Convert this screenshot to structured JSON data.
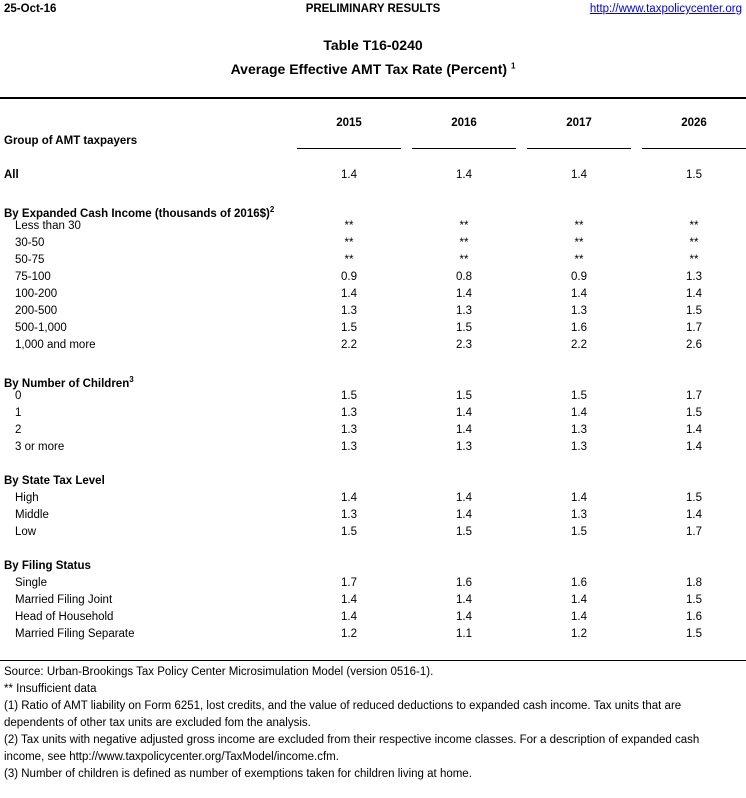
{
  "header": {
    "date": "25-Oct-16",
    "status": "PRELIMINARY RESULTS",
    "link": "http://www.taxpolicycenter.org"
  },
  "title": "Table T16-0240",
  "subtitle": "Average Effective AMT Tax Rate (Percent)",
  "subtitle_note": "1",
  "columns": [
    "2015",
    "2016",
    "2017",
    "2026"
  ],
  "group_label": "Group of AMT taxpayers",
  "all": {
    "label": "All",
    "values": [
      "1.4",
      "1.4",
      "1.4",
      "1.5"
    ]
  },
  "sections": [
    {
      "title": "By Expanded Cash Income (thousands of 2016$)",
      "note": "2",
      "rows": [
        {
          "label": "Less than 30",
          "values": [
            "**",
            "**",
            "**",
            "**"
          ]
        },
        {
          "label": "30-50",
          "values": [
            "**",
            "**",
            "**",
            "**"
          ]
        },
        {
          "label": "50-75",
          "values": [
            "**",
            "**",
            "**",
            "**"
          ]
        },
        {
          "label": "75-100",
          "values": [
            "0.9",
            "0.8",
            "0.9",
            "1.3"
          ]
        },
        {
          "label": "100-200",
          "values": [
            "1.4",
            "1.4",
            "1.4",
            "1.4"
          ]
        },
        {
          "label": "200-500",
          "values": [
            "1.3",
            "1.3",
            "1.3",
            "1.5"
          ]
        },
        {
          "label": "500-1,000",
          "values": [
            "1.5",
            "1.5",
            "1.6",
            "1.7"
          ]
        },
        {
          "label": "1,000 and more",
          "values": [
            "2.2",
            "2.3",
            "2.2",
            "2.6"
          ]
        }
      ]
    },
    {
      "title": "By Number of Children",
      "note": "3",
      "rows": [
        {
          "label": "0",
          "values": [
            "1.5",
            "1.5",
            "1.5",
            "1.7"
          ]
        },
        {
          "label": "1",
          "values": [
            "1.3",
            "1.4",
            "1.4",
            "1.5"
          ]
        },
        {
          "label": "2",
          "values": [
            "1.3",
            "1.4",
            "1.3",
            "1.4"
          ]
        },
        {
          "label": "3 or more",
          "values": [
            "1.3",
            "1.3",
            "1.3",
            "1.4"
          ]
        }
      ]
    },
    {
      "title": "By State Tax Level",
      "note": "",
      "rows": [
        {
          "label": "High",
          "values": [
            "1.4",
            "1.4",
            "1.4",
            "1.5"
          ]
        },
        {
          "label": "Middle",
          "values": [
            "1.3",
            "1.4",
            "1.3",
            "1.4"
          ]
        },
        {
          "label": "Low",
          "values": [
            "1.5",
            "1.5",
            "1.5",
            "1.7"
          ]
        }
      ]
    },
    {
      "title": "By Filing Status",
      "note": "",
      "rows": [
        {
          "label": "Single",
          "values": [
            "1.7",
            "1.6",
            "1.6",
            "1.8"
          ]
        },
        {
          "label": "Married Filing Joint",
          "values": [
            "1.4",
            "1.4",
            "1.4",
            "1.5"
          ]
        },
        {
          "label": "Head of Household",
          "values": [
            "1.4",
            "1.4",
            "1.4",
            "1.6"
          ]
        },
        {
          "label": "Married Filing Separate",
          "values": [
            "1.2",
            "1.1",
            "1.2",
            "1.5"
          ]
        }
      ]
    }
  ],
  "notes": [
    "Source:  Urban-Brookings Tax Policy Center Microsimulation Model (version 0516-1).",
    "** Insufficient data",
    "(1) Ratio of AMT liability on Form 6251, lost credits, and the value of reduced deductions to expanded cash income. Tax units that are dependents of other tax units are excluded fom the analysis.",
    "(2) Tax units with negative adjusted gross income are excluded from their respective income classes. For a description of expanded cash income, see http://www.taxpolicycenter.org/TaxModel/income.cfm.",
    "(3) Number of children is defined as number of exemptions taken for children living at home."
  ]
}
